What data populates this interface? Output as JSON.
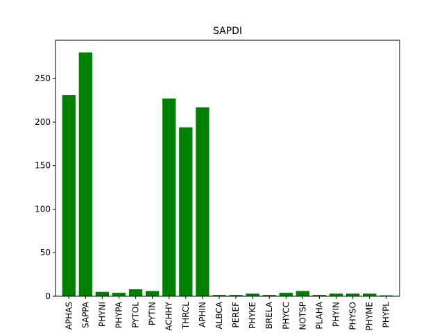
{
  "chart_data": {
    "type": "bar",
    "title": "SAPDI",
    "xlabel": "",
    "ylabel": "",
    "categories": [
      "APHAS",
      "SAPPA",
      "PHYNI",
      "PHYPA",
      "PYTOL",
      "PYTIN",
      "ACHHY",
      "THRCL",
      "APHIN",
      "ALBCA",
      "PEREF",
      "PHYKE",
      "BRELA",
      "PHYCC",
      "NOTSP",
      "PLAHA",
      "PHYIN",
      "PHYSO",
      "PHYME",
      "PHYPL"
    ],
    "values": [
      231,
      280,
      5,
      4,
      8,
      6,
      227,
      194,
      217,
      1.5,
      1.5,
      3,
      1.5,
      4,
      6,
      1.5,
      3,
      3,
      3,
      1
    ],
    "ylim": [
      0,
      294
    ],
    "yticks": [
      0,
      50,
      100,
      150,
      200,
      250
    ],
    "bar_color": "#008000",
    "grid": false,
    "legend": "none"
  }
}
